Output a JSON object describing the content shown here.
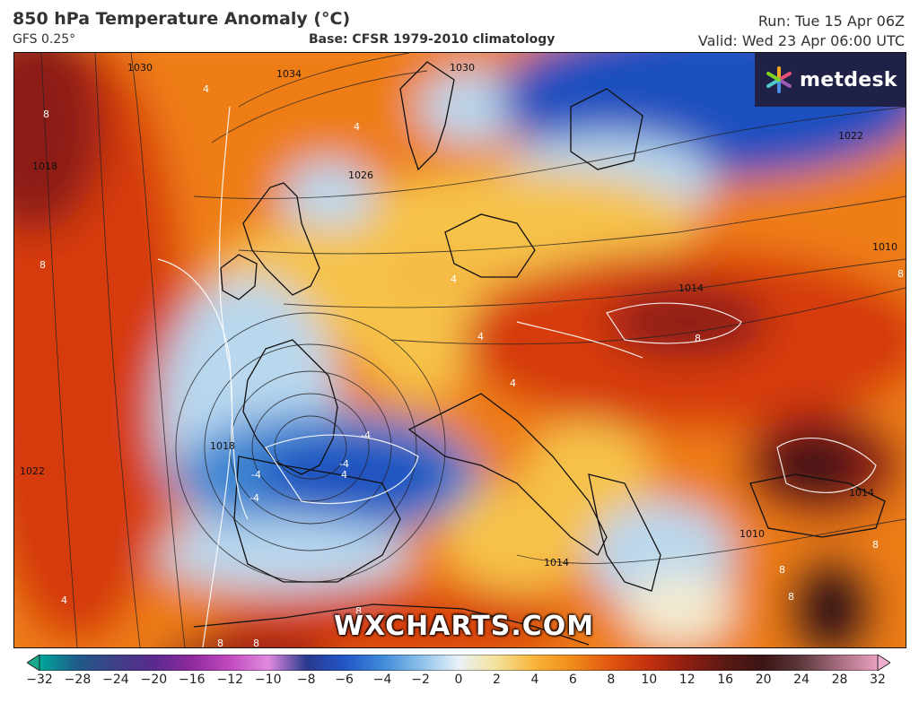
{
  "header": {
    "title": "850 hPa Temperature Anomaly (°C)",
    "model": "GFS 0.25°",
    "base": "Base: CFSR 1979-2010 climatology",
    "run": "Run: Tue 15 Apr 06Z",
    "valid": "Valid: Wed 23 Apr 06:00 UTC"
  },
  "logo": {
    "text": "metdesk",
    "icon": "asterisk-logo-icon"
  },
  "watermark": "WXCHARTS.COM",
  "isobar_labels": [
    "1030",
    "1034",
    "1030",
    "1026",
    "1018",
    "1022",
    "1018",
    "1022",
    "1014",
    "1014",
    "1014",
    "1010",
    "1010",
    "1018",
    "1014"
  ],
  "anomaly_labels": [
    "8",
    "8",
    "4",
    "4",
    "4",
    "4",
    "8",
    "4",
    "-4",
    "-4",
    "-4",
    "-4",
    "4",
    "8",
    "8",
    "8",
    "8",
    "4",
    "8",
    "8",
    "8"
  ],
  "colorbar": {
    "ticks": [
      "−32",
      "−28",
      "−24",
      "−20",
      "−16",
      "−12",
      "−10",
      "−8",
      "−6",
      "−4",
      "−2",
      "0",
      "2",
      "4",
      "6",
      "8",
      "10",
      "12",
      "16",
      "20",
      "24",
      "28",
      "32"
    ],
    "colors": [
      "#00a89a",
      "#1f5a8a",
      "#3f3f86",
      "#5a2a8e",
      "#8e2a9e",
      "#c24bbf",
      "#e08ade",
      "#2a3a8e",
      "#2255c8",
      "#3f8ad8",
      "#8cc0ea",
      "#e8f1f6",
      "#f4e29a",
      "#f8b43a",
      "#f08a1a",
      "#e05510",
      "#c2300e",
      "#8e1e12",
      "#5a1a14",
      "#3b1414",
      "#5e3a3e",
      "#a86e80",
      "#e8a0c0"
    ],
    "left_cap_color": "#1aa88a",
    "right_cap_color": "#f0b0d0"
  },
  "colors": {
    "warm_strong": "#d63a0c",
    "warm": "#ee7d14",
    "mild": "#f6c24a",
    "neutral": "#f3ecd2",
    "cool": "#b9d8ee",
    "cold": "#3e86d2",
    "deep_cold": "#1f4fbf",
    "very_warm": "#8e1e12",
    "extreme_warm": "#3b1414"
  }
}
